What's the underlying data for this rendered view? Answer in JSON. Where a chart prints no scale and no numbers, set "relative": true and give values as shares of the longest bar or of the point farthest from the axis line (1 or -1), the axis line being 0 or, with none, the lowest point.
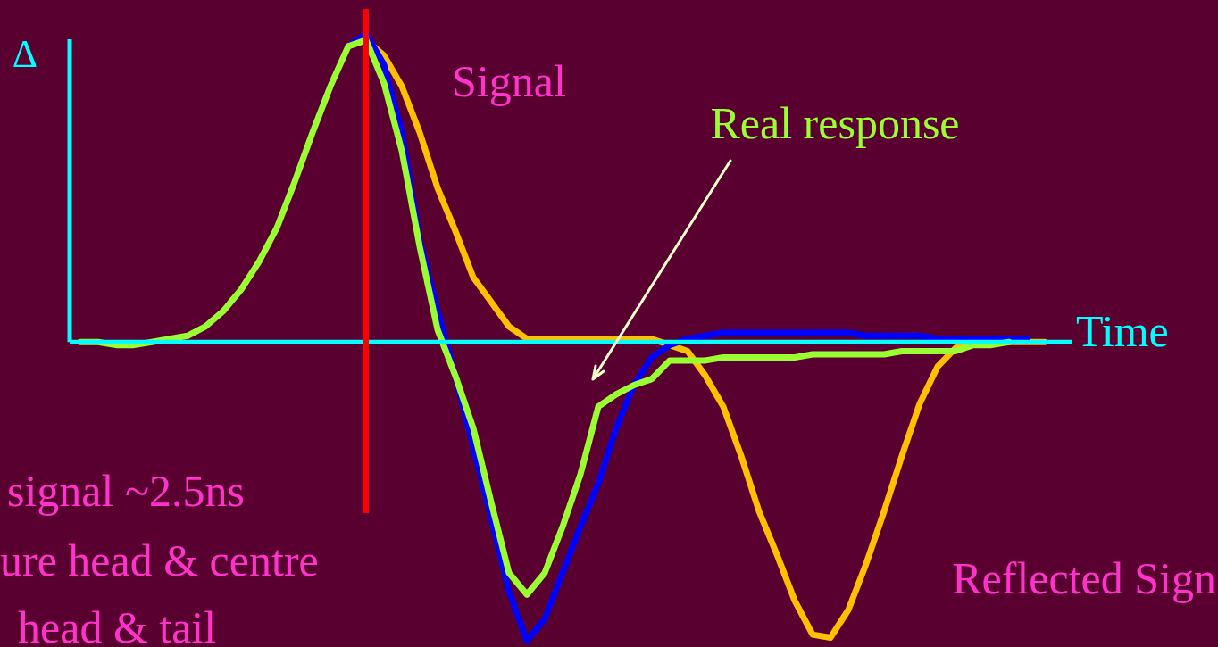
{
  "chart_data": {
    "type": "line",
    "relative": true,
    "xlabel": "Time",
    "ylabel": "Δ",
    "categories": [
      null,
      null,
      null,
      null,
      null,
      null,
      null,
      null,
      null,
      null,
      null,
      null,
      null,
      null,
      null,
      null,
      null,
      null,
      null,
      null,
      null,
      null,
      null,
      null,
      null,
      null,
      null,
      null,
      null,
      null,
      null,
      null,
      null,
      null,
      null,
      null,
      null,
      null,
      null,
      null,
      null,
      null,
      null,
      null,
      null,
      null,
      null,
      null,
      null,
      null,
      null,
      null,
      null,
      null,
      null
    ],
    "series": [
      {
        "color": "#ffc000",
        "values": [
          null,
          null,
          null,
          null,
          null,
          null,
          null,
          null,
          null,
          null,
          null,
          null,
          null,
          null,
          null,
          0.96,
          0.98,
          0.93,
          0.83,
          0.68,
          0.5,
          0.36,
          0.21,
          0.13,
          0.05,
          0.01,
          0.01,
          0.01,
          0.01,
          0.01,
          0.01,
          0.01,
          0.01,
          -0.01,
          -0.03,
          -0.11,
          -0.21,
          -0.37,
          -0.55,
          -0.69,
          -0.84,
          -0.95,
          -0.96,
          -0.87,
          -0.72,
          -0.55,
          -0.37,
          -0.2,
          -0.08,
          -0.02,
          0,
          0,
          0,
          0,
          0
        ]
      },
      {
        "color": "#0000ff",
        "values": [
          null,
          null,
          null,
          null,
          null,
          null,
          null,
          null,
          null,
          null,
          null,
          null,
          null,
          null,
          null,
          0.96,
          1,
          0.9,
          0.68,
          0.33,
          0.1,
          -0.11,
          -0.34,
          -0.57,
          -0.81,
          -0.97,
          -0.9,
          -0.75,
          -0.6,
          -0.46,
          -0.28,
          -0.14,
          -0.05,
          -0.01,
          0.01,
          0.02,
          0.03,
          0.03,
          0.03,
          0.03,
          0.03,
          0.03,
          0.03,
          0.03,
          0.02,
          0.02,
          0.02,
          0.02,
          0.01,
          0.01,
          0.01,
          0.01,
          0.01,
          0.01,
          null
        ]
      },
      {
        "name": "Real response",
        "color": "#99ff33",
        "values": [
          0,
          0,
          -0.01,
          -0.01,
          0,
          0.01,
          0.02,
          0.05,
          0.1,
          0.17,
          0.26,
          0.37,
          0.52,
          0.68,
          0.83,
          0.96,
          0.98,
          0.84,
          0.62,
          0.31,
          0.04,
          -0.11,
          -0.28,
          -0.52,
          -0.75,
          -0.82,
          -0.75,
          -0.6,
          -0.43,
          -0.21,
          -0.17,
          -0.14,
          -0.12,
          -0.06,
          -0.06,
          -0.06,
          -0.05,
          -0.05,
          -0.05,
          -0.05,
          -0.05,
          -0.04,
          -0.04,
          -0.04,
          -0.04,
          -0.04,
          -0.03,
          -0.03,
          -0.03,
          -0.03,
          -0.01,
          -0.01,
          0,
          null,
          null
        ]
      }
    ],
    "ref_lines": [
      {
        "axis": "y",
        "value": 0,
        "color": "#00ffff"
      }
    ],
    "annotations": [
      "Signal",
      "signal ~2.5ns",
      "ure head & centre",
      "head & tail",
      "Reflected Sign"
    ]
  }
}
